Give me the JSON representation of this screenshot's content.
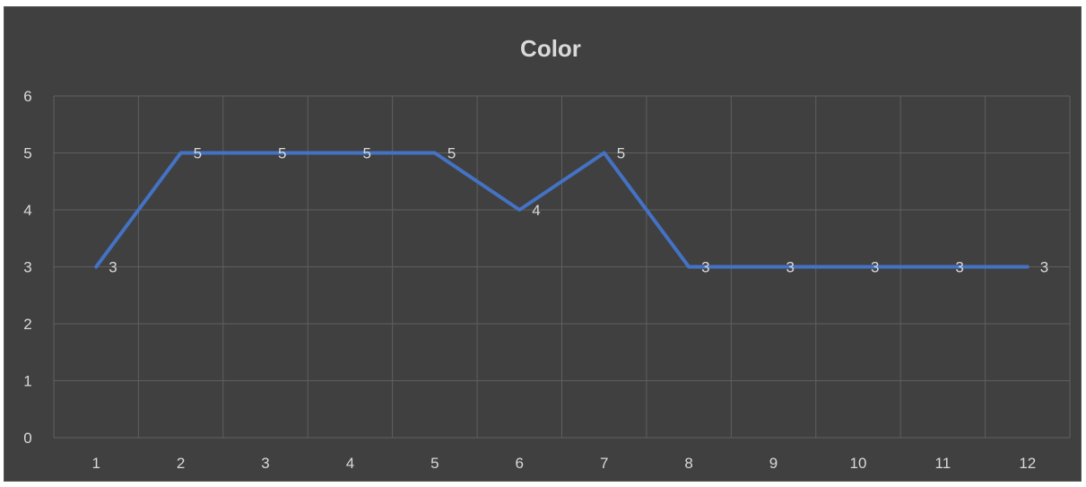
{
  "chart_data": {
    "type": "line",
    "title": "Color",
    "xlabel": "",
    "ylabel": "",
    "categories": [
      "1",
      "2",
      "3",
      "4",
      "5",
      "6",
      "7",
      "8",
      "9",
      "10",
      "11",
      "12"
    ],
    "series": [
      {
        "values": [
          3,
          5,
          5,
          5,
          5,
          4,
          5,
          3,
          3,
          3,
          3,
          3
        ],
        "color": "#4472c4"
      }
    ],
    "ylim": [
      0,
      6
    ],
    "yticks": [
      "0",
      "1",
      "2",
      "3",
      "4",
      "5",
      "6"
    ],
    "grid": true,
    "legend": "none",
    "data_labels": true,
    "colors": {
      "background": "#404040",
      "gridline": "#5f5f5f",
      "text": "#d9d9d9"
    }
  }
}
